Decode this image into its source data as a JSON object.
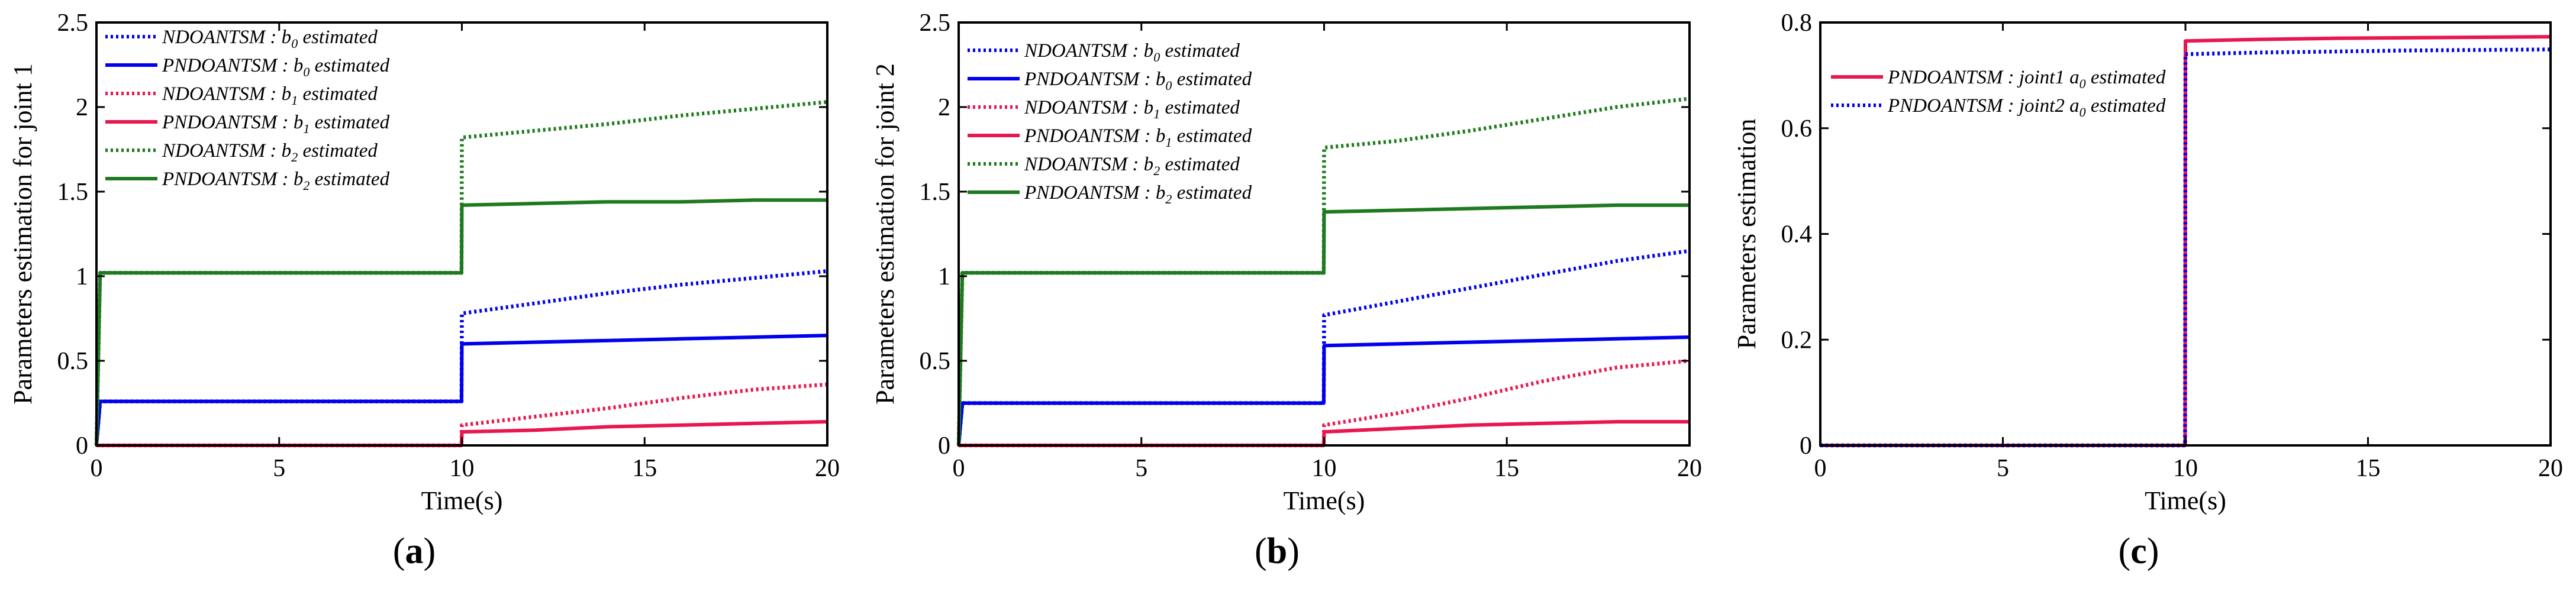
{
  "chart_data": [
    {
      "id": "a",
      "type": "line",
      "caption": "a",
      "xlabel": "Time(s)",
      "ylabel": "Parameters estimation for joint 1",
      "xlim": [
        0,
        20
      ],
      "ylim": [
        0,
        2.5
      ],
      "xticks": [
        0,
        5,
        10,
        15,
        20
      ],
      "yticks": [
        0,
        0.5,
        1,
        1.5,
        2,
        2.5
      ],
      "ytick_labels": [
        "0",
        "0.5",
        "1",
        "1.5",
        "2",
        "2.5"
      ],
      "grid": false,
      "legend_position": "top-left",
      "series": [
        {
          "name": "NDOANTSM : b0 estimated",
          "label": "NDOANTSM :",
          "param": "b",
          "sub": "0",
          "suffix": " estimated",
          "color": "#0000ee",
          "dash": "dotted",
          "x": [
            0,
            0.1,
            9.99,
            10.0,
            12,
            14,
            16,
            18,
            20
          ],
          "y": [
            0,
            0.26,
            0.26,
            0.78,
            0.84,
            0.9,
            0.95,
            0.99,
            1.03
          ]
        },
        {
          "name": "PNDOANTSM : b0 estimated",
          "label": "PNDOANTSM :",
          "param": "b",
          "sub": "0",
          "suffix": " estimated",
          "color": "#0000ee",
          "dash": "solid",
          "x": [
            0,
            0.1,
            9.99,
            10.0,
            12,
            14,
            16,
            18,
            20
          ],
          "y": [
            0,
            0.26,
            0.26,
            0.6,
            0.61,
            0.62,
            0.63,
            0.64,
            0.65
          ]
        },
        {
          "name": "NDOANTSM : b1 estimated",
          "label": "NDOANTSM :",
          "param": "b",
          "sub": "1",
          "suffix": " estimated",
          "color": "#e8174f",
          "dash": "dotted",
          "x": [
            0,
            9.99,
            10.0,
            12,
            14,
            16,
            18,
            20
          ],
          "y": [
            0,
            0,
            0.12,
            0.17,
            0.22,
            0.28,
            0.33,
            0.36
          ]
        },
        {
          "name": "PNDOANTSM : b1 estimated",
          "label": "PNDOANTSM :",
          "param": "b",
          "sub": "1",
          "suffix": " estimated",
          "color": "#e8174f",
          "dash": "solid",
          "x": [
            0,
            9.99,
            10.0,
            12,
            14,
            16,
            18,
            20
          ],
          "y": [
            0,
            0,
            0.08,
            0.09,
            0.11,
            0.12,
            0.13,
            0.14
          ]
        },
        {
          "name": "NDOANTSM : b2 estimated",
          "label": "NDOANTSM :",
          "param": "b",
          "sub": "2",
          "suffix": " estimated",
          "color": "#1f7a1f",
          "dash": "dotted",
          "x": [
            0,
            0.1,
            9.99,
            10.0,
            12,
            14,
            16,
            18,
            20
          ],
          "y": [
            0,
            1.02,
            1.02,
            1.82,
            1.86,
            1.9,
            1.95,
            1.99,
            2.03
          ]
        },
        {
          "name": "PNDOANTSM : b2 estimated",
          "label": "PNDOANTSM :",
          "param": "b",
          "sub": "2",
          "suffix": " estimated",
          "color": "#1f7a1f",
          "dash": "solid",
          "x": [
            0,
            0.1,
            9.99,
            10.0,
            12,
            14,
            16,
            18,
            20
          ],
          "y": [
            0,
            1.02,
            1.02,
            1.42,
            1.43,
            1.44,
            1.44,
            1.45,
            1.45
          ]
        }
      ]
    },
    {
      "id": "b",
      "type": "line",
      "caption": "b",
      "xlabel": "Time(s)",
      "ylabel": "Parameters estimation for joint 2",
      "xlim": [
        0,
        20
      ],
      "ylim": [
        0,
        2.5
      ],
      "xticks": [
        0,
        5,
        10,
        15,
        20
      ],
      "yticks": [
        0,
        0.5,
        1,
        1.5,
        2,
        2.5
      ],
      "ytick_labels": [
        "0",
        "0.5",
        "1",
        "1.5",
        "2",
        "2.5"
      ],
      "grid": false,
      "legend_position": "top-left",
      "series": [
        {
          "name": "NDOANTSM : b0 estimated",
          "label": "NDOANTSM :",
          "param": "b",
          "sub": "0",
          "suffix": " estimated",
          "color": "#0000ee",
          "dash": "dotted",
          "x": [
            0,
            0.1,
            9.99,
            10.0,
            12,
            14,
            16,
            18,
            20
          ],
          "y": [
            0,
            0.25,
            0.25,
            0.77,
            0.85,
            0.93,
            1.01,
            1.09,
            1.15
          ]
        },
        {
          "name": "PNDOANTSM : b0 estimated",
          "label": "PNDOANTSM :",
          "param": "b",
          "sub": "0",
          "suffix": " estimated",
          "color": "#0000ee",
          "dash": "solid",
          "x": [
            0,
            0.1,
            9.99,
            10.0,
            12,
            14,
            16,
            18,
            20
          ],
          "y": [
            0,
            0.25,
            0.25,
            0.59,
            0.6,
            0.61,
            0.62,
            0.63,
            0.64
          ]
        },
        {
          "name": "NDOANTSM : b1 estimated",
          "label": "NDOANTSM :",
          "param": "b",
          "sub": "1",
          "suffix": " estimated",
          "color": "#e8174f",
          "dash": "dotted",
          "x": [
            0,
            9.99,
            10.0,
            12,
            14,
            16,
            18,
            20
          ],
          "y": [
            0,
            0,
            0.12,
            0.19,
            0.28,
            0.38,
            0.46,
            0.5
          ]
        },
        {
          "name": "PNDOANTSM : b1 estimated",
          "label": "PNDOANTSM :",
          "param": "b",
          "sub": "1",
          "suffix": " estimated",
          "color": "#e8174f",
          "dash": "solid",
          "x": [
            0,
            9.99,
            10.0,
            12,
            14,
            16,
            18,
            20
          ],
          "y": [
            0,
            0,
            0.08,
            0.1,
            0.12,
            0.13,
            0.14,
            0.14
          ]
        },
        {
          "name": "NDOANTSM : b2 estimated",
          "label": "NDOANTSM :",
          "param": "b",
          "sub": "2",
          "suffix": " estimated",
          "color": "#1f7a1f",
          "dash": "dotted",
          "x": [
            0,
            0.1,
            9.99,
            10.0,
            12,
            14,
            16,
            18,
            20
          ],
          "y": [
            0,
            1.02,
            1.02,
            1.76,
            1.8,
            1.86,
            1.93,
            2.0,
            2.05
          ]
        },
        {
          "name": "PNDOANTSM : b2 estimated",
          "label": "PNDOANTSM :",
          "param": "b",
          "sub": "2",
          "suffix": " estimated",
          "color": "#1f7a1f",
          "dash": "solid",
          "x": [
            0,
            0.1,
            9.99,
            10.0,
            12,
            14,
            16,
            18,
            20
          ],
          "y": [
            0,
            1.02,
            1.02,
            1.38,
            1.39,
            1.4,
            1.41,
            1.42,
            1.42
          ]
        }
      ]
    },
    {
      "id": "c",
      "type": "line",
      "caption": "c",
      "xlabel": "Time(s)",
      "ylabel": "Parameters estimation",
      "xlim": [
        0,
        20
      ],
      "ylim": [
        0,
        0.8
      ],
      "xticks": [
        0,
        5,
        10,
        15,
        20
      ],
      "yticks": [
        0,
        0.2,
        0.4,
        0.6,
        0.8
      ],
      "ytick_labels": [
        "0",
        "0.2",
        "0.4",
        "0.6",
        "0.8"
      ],
      "grid": false,
      "legend_position": "top-left",
      "series": [
        {
          "name": "PNDOANTSM : joint1 a0 estimated",
          "label": "PNDOANTSM :",
          "param": "joint1 a",
          "sub": "0",
          "suffix": " estimated",
          "color": "#e8174f",
          "dash": "solid",
          "x": [
            0,
            9.99,
            10.0,
            12,
            14,
            16,
            18,
            20
          ],
          "y": [
            0,
            0,
            0.765,
            0.768,
            0.77,
            0.771,
            0.772,
            0.773
          ]
        },
        {
          "name": "PNDOANTSM : joint2 a0 estimated",
          "label": "PNDOANTSM :",
          "param": "joint2 a",
          "sub": "0",
          "suffix": " estimated",
          "color": "#0000ee",
          "dash": "dotted",
          "x": [
            0,
            9.99,
            10.0,
            12,
            14,
            16,
            18,
            20
          ],
          "y": [
            0,
            0,
            0.74,
            0.743,
            0.745,
            0.747,
            0.748,
            0.749
          ]
        }
      ]
    }
  ]
}
